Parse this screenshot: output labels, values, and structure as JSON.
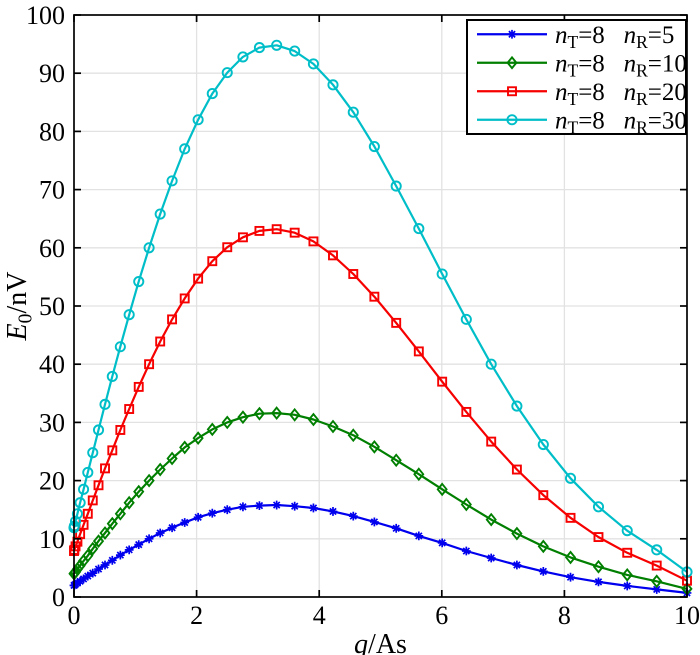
{
  "figure": {
    "background": "#ffffff"
  },
  "chart_data": {
    "type": "line",
    "title": "",
    "xlabel": "q/As",
    "ylabel": "E0/nV",
    "xlabel_segments": [
      {
        "t": "q",
        "k": "i"
      },
      {
        "t": "/As",
        "k": "n"
      }
    ],
    "ylabel_segments": [
      {
        "t": "E",
        "k": "i"
      },
      {
        "t": "0",
        "k": "s"
      },
      {
        "t": "/nV",
        "k": "n"
      }
    ],
    "xlim": [
      0,
      10
    ],
    "ylim": [
      0,
      100
    ],
    "xticks": [
      0,
      2,
      4,
      6,
      8,
      10
    ],
    "yticks": [
      0,
      10,
      20,
      30,
      40,
      50,
      60,
      70,
      80,
      90,
      100
    ],
    "grid": true,
    "grid_color": "#e2e2e2",
    "frame_color": "#000000",
    "legend_position": "top-right",
    "x": [
      0,
      0.006,
      0.025,
      0.056,
      0.1,
      0.156,
      0.225,
      0.306,
      0.4,
      0.506,
      0.625,
      0.756,
      0.9,
      1.056,
      1.225,
      1.406,
      1.6,
      1.806,
      2.025,
      2.256,
      2.5,
      2.756,
      3.025,
      3.306,
      3.6,
      3.906,
      4.225,
      4.556,
      4.9,
      5.256,
      5.625,
      6.006,
      6.4,
      6.806,
      7.225,
      7.656,
      8.1,
      8.556,
      9.025,
      9.506,
      10
    ],
    "series": [
      {
        "name": "nT=8 nR=5",
        "label_segments": [
          {
            "t": "n",
            "k": "i"
          },
          {
            "t": "T",
            "k": "s"
          },
          {
            "t": "=8",
            "k": "n"
          },
          {
            "t": "  ",
            "k": "n"
          },
          {
            "t": "n",
            "k": "i"
          },
          {
            "t": "R",
            "k": "s"
          },
          {
            "t": "=5",
            "k": "n"
          }
        ],
        "color": "#0000EE",
        "marker": "asterisk",
        "peak": 15.8,
        "values": [
          2.0,
          2.0,
          2.2,
          2.4,
          2.7,
          3.1,
          3.6,
          4.1,
          4.8,
          5.5,
          6.3,
          7.2,
          8.1,
          9.0,
          10.0,
          11.0,
          11.9,
          12.8,
          13.7,
          14.4,
          15.0,
          15.5,
          15.7,
          15.8,
          15.6,
          15.3,
          14.7,
          13.9,
          12.9,
          11.8,
          10.5,
          9.3,
          7.9,
          6.7,
          5.5,
          4.4,
          3.4,
          2.6,
          1.9,
          1.3,
          0.7
        ]
      },
      {
        "name": "nT=8 nR=10",
        "label_segments": [
          {
            "t": "n",
            "k": "i"
          },
          {
            "t": "T",
            "k": "s"
          },
          {
            "t": "=8",
            "k": "n"
          },
          {
            "t": "  ",
            "k": "n"
          },
          {
            "t": "n",
            "k": "i"
          },
          {
            "t": "R",
            "k": "s"
          },
          {
            "t": "=10",
            "k": "n"
          }
        ],
        "color": "#007F00",
        "marker": "diamond",
        "peak": 31.6,
        "values": [
          4.0,
          4.1,
          4.3,
          4.8,
          5.4,
          6.2,
          7.1,
          8.3,
          9.6,
          11.0,
          12.6,
          14.3,
          16.2,
          18.1,
          20.0,
          21.9,
          23.8,
          25.7,
          27.3,
          28.8,
          30.0,
          30.9,
          31.5,
          31.6,
          31.3,
          30.5,
          29.3,
          27.8,
          25.8,
          23.5,
          21.1,
          18.5,
          15.9,
          13.3,
          10.9,
          8.7,
          6.8,
          5.2,
          3.8,
          2.7,
          1.4
        ]
      },
      {
        "name": "nT=8 nR=20",
        "label_segments": [
          {
            "t": "n",
            "k": "i"
          },
          {
            "t": "T",
            "k": "s"
          },
          {
            "t": "=8",
            "k": "n"
          },
          {
            "t": "  ",
            "k": "n"
          },
          {
            "t": "n",
            "k": "i"
          },
          {
            "t": "R",
            "k": "s"
          },
          {
            "t": "=20",
            "k": "n"
          }
        ],
        "color": "#F60000",
        "marker": "square",
        "peak": 63.2,
        "values": [
          7.9,
          8.1,
          8.7,
          9.5,
          10.8,
          12.4,
          14.3,
          16.6,
          19.2,
          22.1,
          25.2,
          28.7,
          32.3,
          36.1,
          40.0,
          43.9,
          47.7,
          51.3,
          54.7,
          57.7,
          60.1,
          61.8,
          62.9,
          63.2,
          62.6,
          61.1,
          58.7,
          55.5,
          51.6,
          47.1,
          42.2,
          37.0,
          31.8,
          26.7,
          21.9,
          17.5,
          13.6,
          10.3,
          7.6,
          5.4,
          2.8
        ]
      },
      {
        "name": "nT=8 nR=30",
        "label_segments": [
          {
            "t": "n",
            "k": "i"
          },
          {
            "t": "T",
            "k": "s"
          },
          {
            "t": "=8",
            "k": "n"
          },
          {
            "t": "  ",
            "k": "n"
          },
          {
            "t": "n",
            "k": "i"
          },
          {
            "t": "R",
            "k": "s"
          },
          {
            "t": "=30",
            "k": "n"
          }
        ],
        "color": "#00BEC8",
        "marker": "circle",
        "peak": 94.8,
        "values": [
          11.9,
          12.2,
          13.0,
          14.3,
          16.2,
          18.5,
          21.4,
          24.8,
          28.7,
          33.1,
          37.9,
          43.0,
          48.5,
          54.2,
          60.0,
          65.8,
          71.5,
          77.0,
          82.0,
          86.5,
          90.1,
          92.8,
          94.4,
          94.8,
          93.8,
          91.6,
          88.0,
          83.3,
          77.4,
          70.6,
          63.3,
          55.5,
          47.7,
          40.0,
          32.8,
          26.2,
          20.4,
          15.5,
          11.4,
          8.1,
          4.3
        ]
      }
    ]
  }
}
